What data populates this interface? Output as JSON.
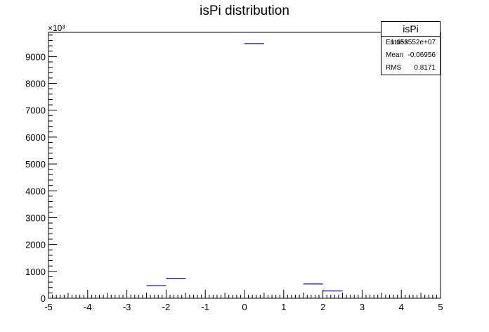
{
  "title": "isPi distribution",
  "stats": {
    "name": "isPi",
    "rows": [
      {
        "label": "Entries",
        "value": "1.153552e+07"
      },
      {
        "label": "Mean",
        "value": "-0.06956"
      },
      {
        "label": "RMS",
        "value": "0.8171"
      }
    ]
  },
  "chart_data": {
    "type": "bar",
    "style": "histogram-steps",
    "x": {
      "min": -5,
      "max": 5,
      "ticks": [
        "-5",
        "-4",
        "-3",
        "-2",
        "-1",
        "0",
        "1",
        "2",
        "3",
        "4",
        "5"
      ]
    },
    "y": {
      "min": 0,
      "max": 9900,
      "scale_label": "×10³",
      "ticks": [
        "0",
        "1000",
        "2000",
        "3000",
        "4000",
        "5000",
        "6000",
        "7000",
        "8000",
        "9000"
      ]
    },
    "bins": [
      {
        "x0": -2.5,
        "x1": -2.0,
        "value": 470
      },
      {
        "x0": -2.0,
        "x1": -1.5,
        "value": 740
      },
      {
        "x0": 0.0,
        "x1": 0.5,
        "value": 9480
      },
      {
        "x0": 1.5,
        "x1": 2.0,
        "value": 530
      },
      {
        "x0": 2.0,
        "x1": 2.5,
        "value": 270
      }
    ],
    "line_color": "#000080"
  }
}
